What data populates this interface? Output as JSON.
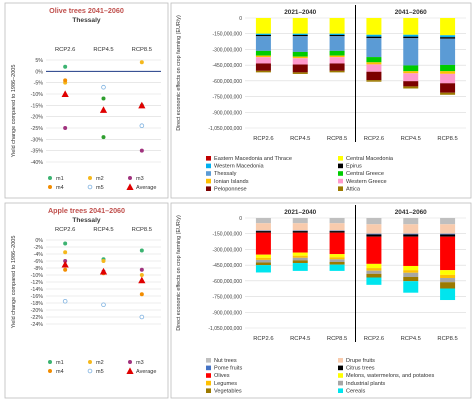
{
  "chart_data": [
    {
      "type": "scatter",
      "title": "Olive trees 2041–2060",
      "subtitle": "Thessaly",
      "ylabel": "Yield change compared to 1986–2005",
      "categories": [
        "RCP2.6",
        "RCP4.5",
        "RCP8.5"
      ],
      "y_ticks": [
        "5%",
        "0%",
        "-5%",
        "-10%",
        "-15%",
        "-20%",
        "-25%",
        "-30%",
        "-35%",
        "-40%"
      ],
      "ylim": [
        -40,
        5
      ],
      "zero_line": true,
      "legend_position": "bottom",
      "series": [
        {
          "name": "m1",
          "color": "#3cb371",
          "marker": "circle",
          "values": [
            2,
            null,
            -15
          ]
        },
        {
          "name": "m2",
          "color": "#f5b81c",
          "marker": "circle",
          "values": [
            -5,
            null,
            4
          ]
        },
        {
          "name": "m3",
          "color": "#a0337e",
          "marker": "circle",
          "values": [
            -25,
            null,
            -35
          ]
        },
        {
          "name": "m4",
          "color": "#f28c00",
          "marker": "circle",
          "values": [
            -4,
            null,
            null
          ]
        },
        {
          "name": "m5",
          "color": "#7fb2e0",
          "marker": "hollow-circle",
          "values": [
            null,
            -7,
            -24
          ]
        },
        {
          "name": "Average",
          "color": "#e00000",
          "marker": "triangle",
          "values": [
            -10,
            -17,
            -15
          ]
        },
        {
          "name": "",
          "color": "#2e9e2e",
          "marker": "circle",
          "values": [
            null,
            -29,
            null
          ]
        },
        {
          "name": "",
          "color": "#2e9e2e",
          "marker": "circle",
          "values": [
            null,
            -12,
            null
          ]
        }
      ]
    },
    {
      "type": "scatter",
      "title": "Apple trees 2041–2060",
      "subtitle": "Thessaly",
      "ylabel": "Yield change compared to 1986–2005",
      "categories": [
        "RCP2.6",
        "RCP4.5",
        "RCP8.5"
      ],
      "y_ticks": [
        "0%",
        "-2%",
        "-4%",
        "-6%",
        "-8%",
        "-10%",
        "-12%",
        "-14%",
        "-16%",
        "-18%",
        "-20%",
        "-22%",
        "-24%"
      ],
      "ylim": [
        -24,
        0
      ],
      "legend_position": "bottom",
      "series": [
        {
          "name": "m1",
          "color": "#3cb371",
          "marker": "circle",
          "values": [
            -1,
            -5.5,
            -3
          ]
        },
        {
          "name": "m2",
          "color": "#f5b81c",
          "marker": "circle",
          "values": [
            -3.5,
            -6,
            -10
          ]
        },
        {
          "name": "m3",
          "color": "#a0337e",
          "marker": "circle",
          "values": [
            -6,
            -9,
            -8.5
          ]
        },
        {
          "name": "m4",
          "color": "#f28c00",
          "marker": "circle",
          "values": [
            -8.5,
            -9.5,
            -15.5
          ]
        },
        {
          "name": "m5",
          "color": "#7fb2e0",
          "marker": "hollow-circle",
          "values": [
            -17.5,
            -18.5,
            -22
          ]
        },
        {
          "name": "Average",
          "color": "#e00000",
          "marker": "triangle",
          "values": [
            -7,
            -9,
            -11.5
          ]
        }
      ]
    },
    {
      "type": "bar",
      "stacked": true,
      "ylabel": "Direct economic effects on crop farming (EUR/y)",
      "periods": [
        "2021–2040",
        "2041–2060"
      ],
      "categories": [
        "RCP2.6",
        "RCP4.5",
        "RCP8.5",
        "RCP2.6",
        "RCP4.5",
        "RCP8.5"
      ],
      "y_ticks": [
        "0",
        "-150,000,000",
        "-300,000,000",
        "-450,000,000",
        "-600,000,000",
        "-750,000,000",
        "-900,000,000",
        "-1,050,000,000"
      ],
      "ylim": [
        -1050000000,
        0
      ],
      "legend_position": "bottom",
      "series": [
        {
          "name": "Eastern Macedonia and Thrace",
          "color": "#c00000",
          "values": [
            0,
            0,
            0,
            0,
            0,
            0
          ]
        },
        {
          "name": "Central Macedonia",
          "color": "#ffff00",
          "values": [
            -150000000,
            -150000000,
            -150000000,
            -160000000,
            -160000000,
            -165000000
          ]
        },
        {
          "name": "Western Macedonia",
          "color": "#00b0f0",
          "values": [
            -12000000,
            -12000000,
            -12000000,
            -18000000,
            -18000000,
            -18000000
          ]
        },
        {
          "name": "Epirus",
          "color": "#000000",
          "values": [
            -12000000,
            -12000000,
            -12000000,
            -15000000,
            -15000000,
            -15000000
          ]
        },
        {
          "name": "Thessaly",
          "color": "#5b9bd5",
          "values": [
            -140000000,
            -150000000,
            -140000000,
            -180000000,
            -260000000,
            -250000000
          ]
        },
        {
          "name": "Central Greece",
          "color": "#00cc00",
          "values": [
            -45000000,
            -45000000,
            -45000000,
            -50000000,
            -55000000,
            -60000000
          ]
        },
        {
          "name": "Ionian Islands",
          "color": "#ffc000",
          "values": [
            -15000000,
            -15000000,
            -15000000,
            -20000000,
            -20000000,
            -25000000
          ]
        },
        {
          "name": "Western Greece",
          "color": "#ff99cc",
          "values": [
            -60000000,
            -60000000,
            -60000000,
            -70000000,
            -75000000,
            -90000000
          ]
        },
        {
          "name": "Peloponnese",
          "color": "#7b0000",
          "values": [
            -70000000,
            -75000000,
            -70000000,
            -80000000,
            -50000000,
            -90000000
          ]
        },
        {
          "name": "Attica",
          "color": "#9c7a00",
          "values": [
            -15000000,
            -15000000,
            -15000000,
            -15000000,
            -20000000,
            -20000000
          ]
        }
      ]
    },
    {
      "type": "bar",
      "stacked": true,
      "ylabel": "Direct economic effects on crop farming (EUR/y)",
      "periods": [
        "2021–2040",
        "2041–2060"
      ],
      "categories": [
        "RCP2.6",
        "RCP4.5",
        "RCP8.5",
        "RCP2.6",
        "RCP4.5",
        "RCP8.5"
      ],
      "y_ticks": [
        "0",
        "-150,000,000",
        "-300,000,000",
        "-450,000,000",
        "-600,000,000",
        "-750,000,000",
        "-900,000,000",
        "-1,050,000,000"
      ],
      "ylim": [
        -1050000000,
        0
      ],
      "legend_position": "bottom",
      "series": [
        {
          "name": "Nut trees",
          "color": "#bfbfbf",
          "values": [
            -50000000,
            -50000000,
            -50000000,
            -60000000,
            -60000000,
            -60000000
          ]
        },
        {
          "name": "Drupe fruits",
          "color": "#f8cbad",
          "values": [
            -70000000,
            -70000000,
            -70000000,
            -90000000,
            -90000000,
            -90000000
          ]
        },
        {
          "name": "Pome fruits",
          "color": "#4472c4",
          "values": [
            -5000000,
            -5000000,
            -5000000,
            -8000000,
            -8000000,
            -8000000
          ]
        },
        {
          "name": "Citrus trees",
          "color": "#000000",
          "values": [
            -15000000,
            -15000000,
            -15000000,
            -20000000,
            -20000000,
            -20000000
          ]
        },
        {
          "name": "Olives",
          "color": "#ff0000",
          "values": [
            -210000000,
            -190000000,
            -205000000,
            -260000000,
            -280000000,
            -320000000
          ]
        },
        {
          "name": "Melons, watermelons, and potatoes",
          "color": "#ffff00",
          "values": [
            -30000000,
            -30000000,
            -30000000,
            -40000000,
            -40000000,
            -45000000
          ]
        },
        {
          "name": "Legumes",
          "color": "#ffc000",
          "values": [
            -20000000,
            -20000000,
            -20000000,
            -25000000,
            -25000000,
            -30000000
          ]
        },
        {
          "name": "Industrial plants",
          "color": "#a6a6a6",
          "values": [
            -25000000,
            -25000000,
            -25000000,
            -30000000,
            -40000000,
            -40000000
          ]
        },
        {
          "name": "Vegetables",
          "color": "#9c7a00",
          "values": [
            -25000000,
            -25000000,
            -25000000,
            -35000000,
            -40000000,
            -60000000
          ]
        },
        {
          "name": "Cereals",
          "color": "#00e5ee",
          "values": [
            -70000000,
            -75000000,
            -60000000,
            -70000000,
            -110000000,
            -110000000
          ]
        }
      ]
    }
  ]
}
